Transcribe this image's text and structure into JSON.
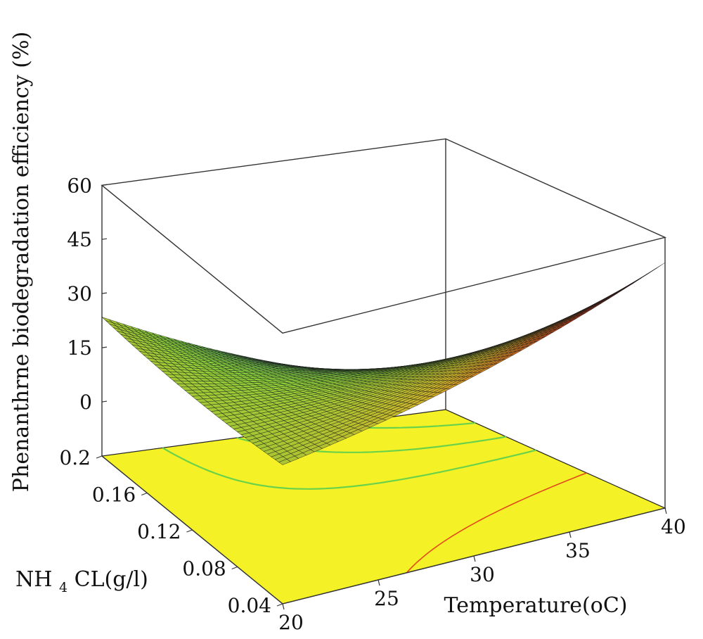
{
  "chart_data": {
    "type": "surface3d",
    "title": "",
    "zlabel": "Phenanthrne biodegradation efficiency (%)",
    "xlabel": "Temperature(oC)",
    "ylabel": {
      "prefix": "NH",
      "subscript": "4",
      "suffix": "CL(g/l)"
    },
    "x_ticks": [
      "20",
      "25",
      "30",
      "35",
      "40"
    ],
    "y_ticks": [
      "0.04",
      "0.08",
      "0.12",
      "0.16",
      "0.2"
    ],
    "z_ticks": [
      "0",
      "15",
      "30",
      "45",
      "60"
    ],
    "xlim": [
      20,
      40
    ],
    "ylim": [
      0.04,
      0.2
    ],
    "zlim": [
      -15,
      60
    ],
    "corner_values": [
      {
        "x": 20,
        "y": 0.2,
        "z": 23.5
      },
      {
        "x": 20,
        "y": 0.04,
        "z": 23.5
      },
      {
        "x": 40,
        "y": 0.2,
        "z": -7.5
      },
      {
        "x": 40,
        "y": 0.04,
        "z": 53
      }
    ],
    "colormap": [
      "#3aa7e0",
      "#52c46a",
      "#8cd13a",
      "#cdb62a",
      "#d83a18",
      "#301010"
    ],
    "floor_color": "#f4f227",
    "contour_color": "#6ad24a",
    "contour_hot_color": "#e24a1c",
    "grid": true
  }
}
